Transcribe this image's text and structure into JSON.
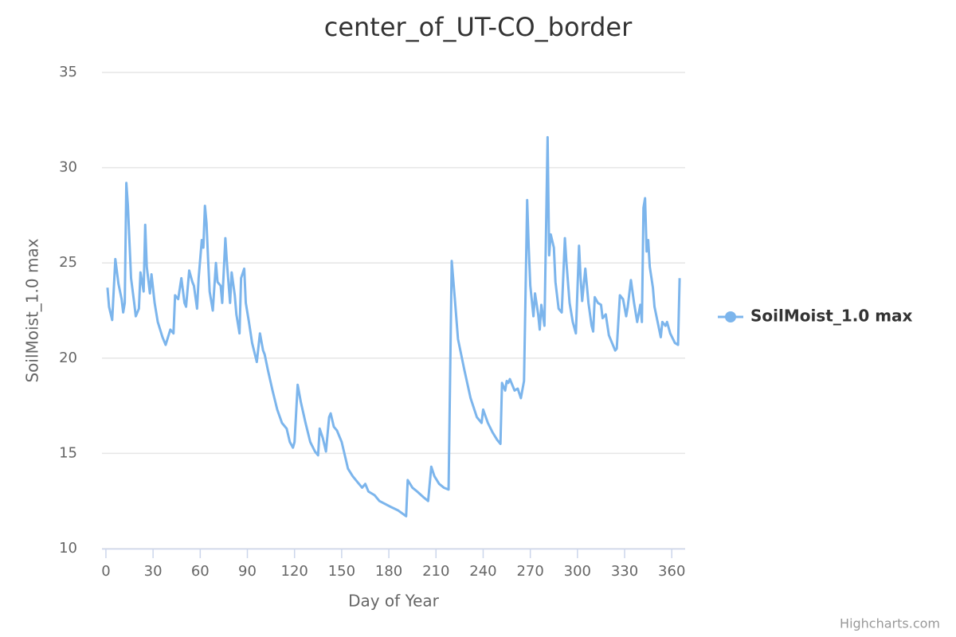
{
  "chart_data": {
    "type": "line",
    "title": "center_of_UT-CO_border",
    "x_label": "Day of Year",
    "y_label": "SoilMoist_1.0 max",
    "credits": "Highcharts.com",
    "xlim": [
      -2.5,
      368.5
    ],
    "xticks": [
      0,
      30,
      60,
      90,
      120,
      150,
      180,
      210,
      240,
      270,
      300,
      330,
      360
    ],
    "ylim": [
      10,
      35
    ],
    "yticks": [
      10,
      15,
      20,
      25,
      30,
      35
    ],
    "grid": true,
    "legend": "right",
    "series": [
      {
        "name": "SoilMoist_1.0 max",
        "color": "#7cb5ec",
        "x": [
          1,
          2,
          4,
          6,
          8,
          10,
          11,
          12,
          13,
          14,
          15,
          16,
          18,
          19,
          21,
          22,
          24,
          25,
          26,
          28,
          29,
          31,
          33,
          36,
          38,
          41,
          43,
          44,
          46,
          48,
          50,
          51,
          53,
          55,
          56,
          58,
          59,
          61,
          62,
          63,
          64,
          65,
          66,
          68,
          70,
          71,
          73,
          74,
          76,
          77,
          79,
          80,
          82,
          83,
          85,
          86,
          88,
          89,
          91,
          93,
          96,
          98,
          100,
          101,
          103,
          106,
          109,
          112,
          115,
          117,
          119,
          120,
          122,
          124,
          127,
          130,
          133,
          135,
          136,
          138,
          140,
          142,
          143,
          145,
          147,
          150,
          152,
          154,
          157,
          160,
          163,
          165,
          167,
          171,
          174,
          181,
          186,
          191,
          192,
          195,
          198,
          202,
          205,
          207,
          209,
          212,
          215,
          218,
          220,
          222,
          224,
          228,
          232,
          236,
          239,
          240,
          243,
          246,
          249,
          251,
          252,
          254,
          255,
          256,
          257,
          260,
          262,
          264,
          266,
          268,
          269,
          270,
          272,
          273,
          275,
          276,
          277,
          279,
          281,
          282,
          283,
          285,
          286,
          288,
          290,
          292,
          293,
          295,
          297,
          299,
          301,
          302,
          303,
          305,
          307,
          309,
          310,
          311,
          313,
          315,
          316,
          318,
          320,
          322,
          324,
          325,
          327,
          329,
          331,
          332,
          334,
          336,
          338,
          340,
          341,
          342,
          343,
          344,
          345,
          346,
          348,
          349,
          351,
          353,
          354,
          356,
          357,
          359,
          362,
          364,
          365
        ],
        "values": [
          23.7,
          22.7,
          22.0,
          25.2,
          23.9,
          23.1,
          22.4,
          22.9,
          29.2,
          28.0,
          26.1,
          24.2,
          22.9,
          22.2,
          22.6,
          24.5,
          23.5,
          27.0,
          24.8,
          23.4,
          24.4,
          22.9,
          21.9,
          21.1,
          20.7,
          21.5,
          21.3,
          23.3,
          23.1,
          24.2,
          22.9,
          22.7,
          24.6,
          24.0,
          23.8,
          22.6,
          24.2,
          26.2,
          25.8,
          28.0,
          27.1,
          25.2,
          23.5,
          22.5,
          25.0,
          24.0,
          23.8,
          22.9,
          26.3,
          25.0,
          22.9,
          24.5,
          23.3,
          22.3,
          21.3,
          24.2,
          24.7,
          22.9,
          21.9,
          20.8,
          19.8,
          21.3,
          20.4,
          20.2,
          19.4,
          18.3,
          17.3,
          16.6,
          16.3,
          15.6,
          15.3,
          15.6,
          18.6,
          17.7,
          16.6,
          15.6,
          15.1,
          14.9,
          16.3,
          15.8,
          15.1,
          16.9,
          17.1,
          16.4,
          16.2,
          15.6,
          14.9,
          14.2,
          13.8,
          13.5,
          13.2,
          13.4,
          13.0,
          12.8,
          12.5,
          12.2,
          12.0,
          11.7,
          13.6,
          13.2,
          13.0,
          12.7,
          12.5,
          14.3,
          13.8,
          13.4,
          13.2,
          13.1,
          25.1,
          23.1,
          21.0,
          19.4,
          17.9,
          16.9,
          16.6,
          17.3,
          16.6,
          16.1,
          15.7,
          15.5,
          18.7,
          18.3,
          18.8,
          18.7,
          18.9,
          18.3,
          18.4,
          17.9,
          18.8,
          28.3,
          25.8,
          23.8,
          22.2,
          23.4,
          22.3,
          21.5,
          22.8,
          21.7,
          31.6,
          25.4,
          26.5,
          25.8,
          24.0,
          22.6,
          22.4,
          26.3,
          25.0,
          22.9,
          21.9,
          21.3,
          25.9,
          24.2,
          23.0,
          24.7,
          22.9,
          21.7,
          21.4,
          23.2,
          22.9,
          22.8,
          22.1,
          22.3,
          21.2,
          20.8,
          20.4,
          20.5,
          23.3,
          23.1,
          22.2,
          22.7,
          24.1,
          22.9,
          21.9,
          22.8,
          21.9,
          27.9,
          28.4,
          25.6,
          26.2,
          24.8,
          23.7,
          22.7,
          21.9,
          21.1,
          21.9,
          21.7,
          21.9,
          21.3,
          20.8,
          20.7,
          24.2
        ]
      }
    ]
  }
}
